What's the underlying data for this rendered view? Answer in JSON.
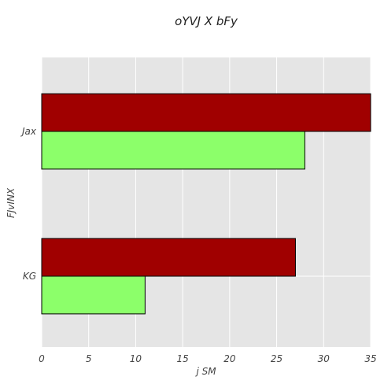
{
  "chart_data": {
    "type": "bar",
    "orientation": "horizontal",
    "title": "oYVJ X bFy",
    "xlabel": "j SM",
    "ylabel": "FJvINX",
    "categories": [
      "Jax",
      "KG"
    ],
    "series": [
      {
        "values": [
          35,
          27
        ],
        "color": "#a00000"
      },
      {
        "values": [
          28,
          11
        ],
        "color": "#8cff6a"
      }
    ],
    "xlim": [
      0,
      35
    ],
    "xticks": [
      0,
      5,
      10,
      15,
      20,
      25,
      30,
      35
    ],
    "grid": true,
    "background": "#e5e5e5",
    "bar_edge_color": "#000000"
  }
}
